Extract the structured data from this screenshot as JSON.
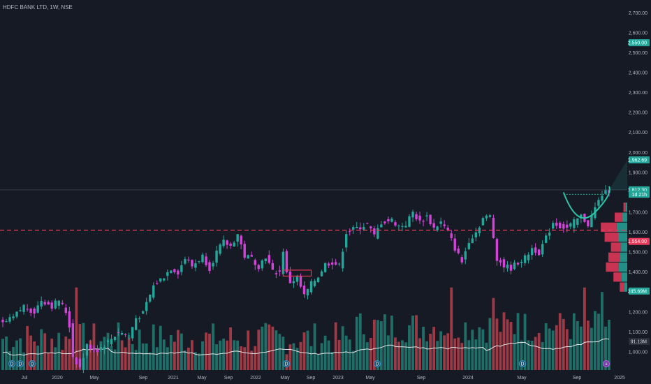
{
  "header": {
    "title": "HDFC BANK LTD, 1W, NSE"
  },
  "colors": {
    "background": "#161a25",
    "up": "#26a69a",
    "down": "#d243d8",
    "vol_up": "#1f6f68",
    "vol_down": "#9e3a45",
    "support_line": "#e83a5a",
    "text": "#b2b5be",
    "volume_ma": "#e6e6e6",
    "cup_curve": "#2ec4a6"
  },
  "chart_data": {
    "type": "candlestick",
    "symbol": "HDFC BANK LTD",
    "interval": "1W",
    "exchange": "NSE",
    "ylim": [
      900,
      2700
    ],
    "y_ticks": [
      1000,
      1100,
      1200,
      1300,
      1400,
      1500,
      1600,
      1700,
      1800,
      1900,
      2000,
      2100,
      2200,
      2300,
      2400,
      2500,
      2600,
      2700
    ],
    "y_tick_labels": [
      "1,000.00",
      "1,100.00",
      "1,200.00",
      "1,300.00",
      "1,400.00",
      "1,500.00",
      "1,600.00",
      "1,700.00",
      "1,800.00",
      "1,900.00",
      "2,000.00",
      "2,100.00",
      "2,200.00",
      "2,300.00",
      "2,400.00",
      "2,500.00",
      "2,600.00",
      "2,700.00"
    ],
    "x_ticks": [
      "Jul",
      "2020",
      "May",
      "Sep",
      "2021",
      "May",
      "Sep",
      "2022",
      "May",
      "Sep",
      "2023",
      "May",
      "Sep",
      "2024",
      "May",
      "Sep",
      "2025"
    ],
    "support_level": 1610,
    "price_tags": [
      {
        "label": "2,550.00",
        "value": 2550,
        "color": "#26a69a"
      },
      {
        "label": "1,962.69",
        "value": 1962.69,
        "color": "#26a69a"
      },
      {
        "label": "1,812.30",
        "value": 1812.3,
        "color": "#26a69a"
      },
      {
        "label": "1d 21h",
        "value": 1790,
        "color": "#26a69a"
      },
      {
        "label": "1,554.00",
        "value": 1554,
        "color": "#e83a5a"
      },
      {
        "label": "245.69M",
        "value": 1305,
        "color": "#26a69a"
      }
    ],
    "volume_ma_label": "91.13M",
    "close_path": [
      [
        0,
        1140
      ],
      [
        3,
        1170
      ],
      [
        6,
        1230
      ],
      [
        9,
        1200
      ],
      [
        11,
        1260
      ],
      [
        14,
        1230
      ],
      [
        16,
        1260
      ],
      [
        18,
        1200
      ],
      [
        19,
        1130
      ],
      [
        20,
        980
      ],
      [
        22,
        920
      ],
      [
        24,
        1030
      ],
      [
        27,
        1010
      ],
      [
        30,
        1050
      ],
      [
        33,
        1100
      ],
      [
        36,
        1080
      ],
      [
        38,
        1170
      ],
      [
        40,
        1190
      ],
      [
        41,
        1240
      ],
      [
        43,
        1330
      ],
      [
        46,
        1380
      ],
      [
        48,
        1420
      ],
      [
        50,
        1400
      ],
      [
        52,
        1470
      ],
      [
        54,
        1430
      ],
      [
        57,
        1480
      ],
      [
        59,
        1420
      ],
      [
        61,
        1500
      ],
      [
        63,
        1550
      ],
      [
        65,
        1530
      ],
      [
        67,
        1590
      ],
      [
        69,
        1480
      ],
      [
        71,
        1470
      ],
      [
        73,
        1430
      ],
      [
        75,
        1480
      ],
      [
        77,
        1400
      ],
      [
        79,
        1400
      ],
      [
        80,
        1510
      ],
      [
        81,
        1390
      ],
      [
        82,
        1350
      ],
      [
        84,
        1370
      ],
      [
        86,
        1280
      ],
      [
        88,
        1340
      ],
      [
        90,
        1380
      ],
      [
        92,
        1440
      ],
      [
        94,
        1450
      ],
      [
        96,
        1430
      ],
      [
        98,
        1600
      ],
      [
        101,
        1620
      ],
      [
        104,
        1640
      ],
      [
        106,
        1580
      ],
      [
        108,
        1650
      ],
      [
        111,
        1660
      ],
      [
        113,
        1630
      ],
      [
        115,
        1640
      ],
      [
        117,
        1700
      ],
      [
        119,
        1650
      ],
      [
        121,
        1680
      ],
      [
        123,
        1620
      ],
      [
        125,
        1650
      ],
      [
        127,
        1600
      ],
      [
        129,
        1520
      ],
      [
        131,
        1450
      ],
      [
        133,
        1560
      ],
      [
        135,
        1600
      ],
      [
        137,
        1670
      ],
      [
        139,
        1680
      ],
      [
        141,
        1470
      ],
      [
        143,
        1430
      ],
      [
        145,
        1420
      ],
      [
        147,
        1450
      ],
      [
        149,
        1470
      ],
      [
        151,
        1520
      ],
      [
        153,
        1500
      ],
      [
        155,
        1570
      ],
      [
        157,
        1650
      ],
      [
        159,
        1630
      ],
      [
        161,
        1620
      ],
      [
        163,
        1650
      ],
      [
        165,
        1680
      ],
      [
        167,
        1640
      ],
      [
        169,
        1720
      ],
      [
        171,
        1790
      ],
      [
        173,
        1812
      ]
    ],
    "volume_profile": [
      {
        "price_from": 1300,
        "price_to": 1350,
        "value": 0.12
      },
      {
        "price_from": 1350,
        "price_to": 1400,
        "value": 0.22
      },
      {
        "price_from": 1400,
        "price_to": 1450,
        "value": 0.34
      },
      {
        "price_from": 1450,
        "price_to": 1500,
        "value": 0.3
      },
      {
        "price_from": 1500,
        "price_to": 1550,
        "value": 0.26
      },
      {
        "price_from": 1550,
        "price_to": 1600,
        "value": 0.36
      },
      {
        "price_from": 1600,
        "price_to": 1650,
        "value": 0.42
      },
      {
        "price_from": 1650,
        "price_to": 1700,
        "value": 0.2
      },
      {
        "price_from": 1700,
        "price_to": 1750,
        "value": 0.06
      }
    ],
    "event_markers": [
      {
        "x": "Jul",
        "symbol": "D"
      },
      {
        "x": "2020",
        "symbol": "D"
      },
      {
        "x": "May",
        "symbol": "D"
      },
      {
        "x": "2022 May",
        "symbol": "D"
      },
      {
        "x": "2023 May",
        "symbol": "D"
      },
      {
        "x": "2024 May",
        "symbol": "D"
      },
      {
        "x": "2025",
        "symbol": "+"
      }
    ]
  }
}
